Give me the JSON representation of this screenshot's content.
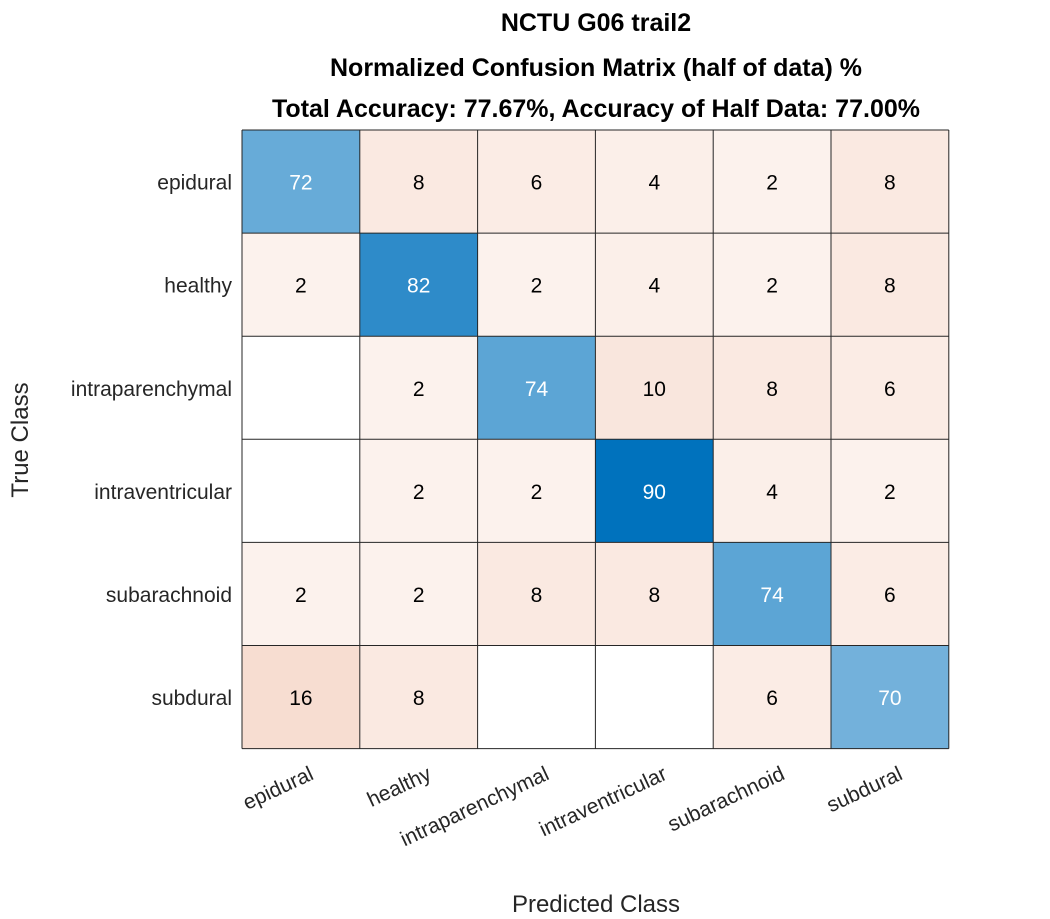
{
  "chart_data": {
    "type": "heatmap",
    "title": [
      "NCTU G06 trail2",
      "Normalized Confusion Matrix (half of data) %",
      "Total Accuracy: 77.67%, Accuracy of Half Data: 77.00%"
    ],
    "xlabel": "Predicted Class",
    "ylabel": "True Class",
    "row_labels": [
      "epidural",
      "healthy",
      "intraparenchymal",
      "intraventricular",
      "subarachnoid",
      "subdural"
    ],
    "col_labels": [
      "epidural",
      "healthy",
      "intraparenchymal",
      "intraventricular",
      "subarachnoid",
      "subdural"
    ],
    "values": [
      [
        72,
        8,
        6,
        4,
        2,
        8
      ],
      [
        2,
        82,
        2,
        4,
        2,
        8
      ],
      [
        null,
        2,
        74,
        10,
        8,
        6
      ],
      [
        null,
        2,
        2,
        90,
        4,
        2
      ],
      [
        2,
        2,
        8,
        8,
        74,
        6
      ],
      [
        16,
        8,
        null,
        null,
        6,
        70
      ]
    ],
    "colors": {
      "diagonal_high": "#0072bd",
      "off_diagonal_high": "#d95319",
      "empty": "#ffffff",
      "grid": "#262626"
    }
  }
}
